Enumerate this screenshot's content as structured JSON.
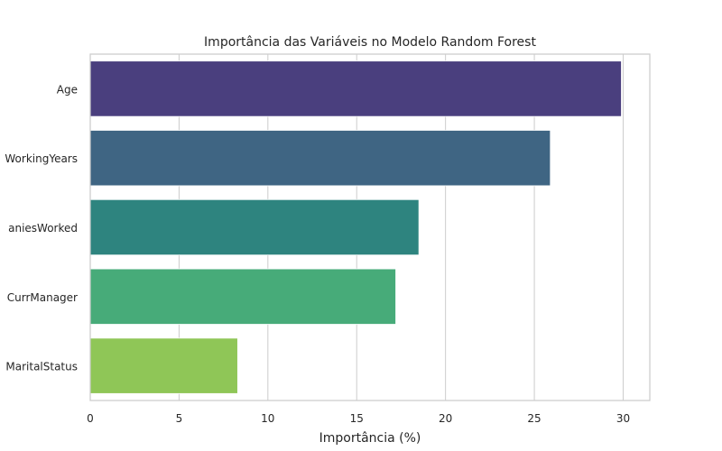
{
  "chart_data": {
    "type": "bar",
    "orientation": "horizontal",
    "title": "Importância das Variáveis no Modelo Random Forest",
    "xlabel": "Importância (%)",
    "ylabel": "",
    "categories": [
      "Age",
      "WorkingYears",
      "aniesWorked",
      "CurrManager",
      "MaritalStatus"
    ],
    "values": [
      29.9,
      25.9,
      18.5,
      17.2,
      8.3
    ],
    "xlim": [
      0,
      31.5
    ],
    "xticks": [
      0,
      5,
      10,
      15,
      20,
      25,
      30
    ],
    "colors": [
      "#4a3f7e",
      "#3f6583",
      "#2e847f",
      "#47ab79",
      "#8fc657"
    ],
    "grid": true,
    "legend": "none"
  }
}
